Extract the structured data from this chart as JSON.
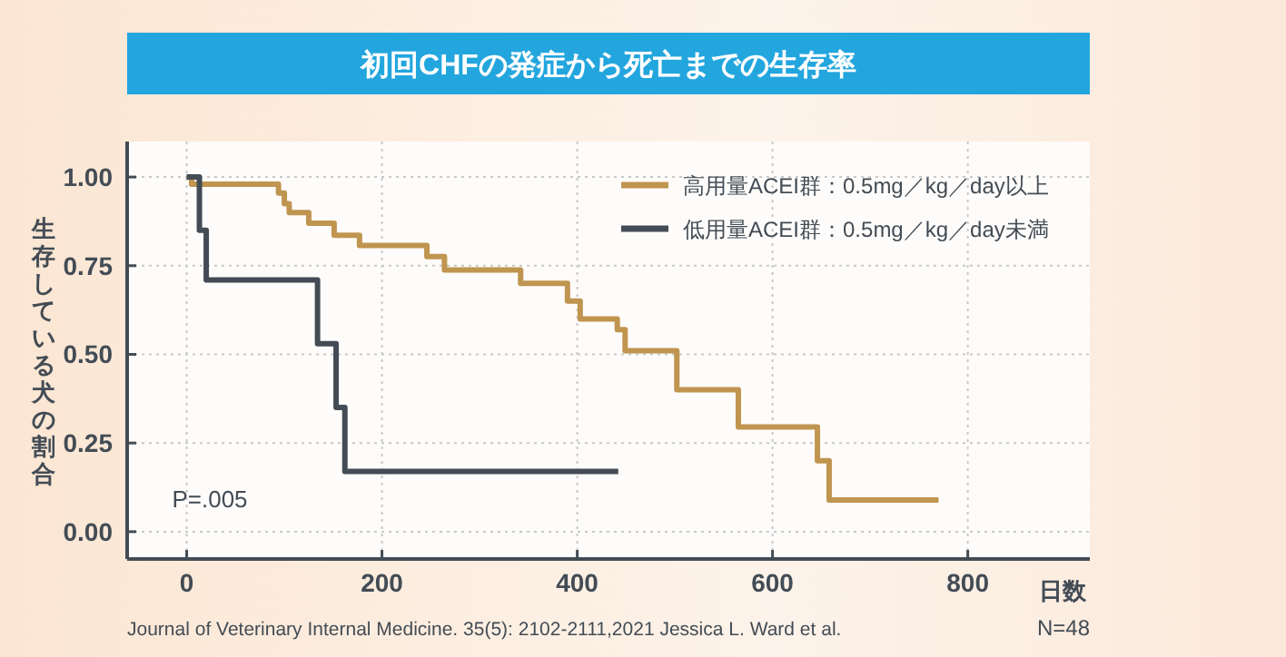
{
  "chart_data": {
    "type": "step",
    "title": "初回CHFの発症から死亡までの生存率",
    "xlabel": "日数",
    "ylabel": "生存している犬の割合",
    "xlim": [
      -61,
      925
    ],
    "ylim": [
      -0.077,
      1.1
    ],
    "xticks": [
      0,
      200,
      400,
      600,
      800
    ],
    "yticks": [
      {
        "value": 0,
        "label": "0.00"
      },
      {
        "value": 0.25,
        "label": "0.25"
      },
      {
        "value": 0.5,
        "label": "0.50"
      },
      {
        "value": 0.75,
        "label": "0.75"
      },
      {
        "value": 1,
        "label": "1.00"
      }
    ],
    "grid": true,
    "legend": "top right",
    "series": [
      {
        "name": "高用量ACEI群：0.5mg／kg／day以上",
        "color": "#c09550",
        "x": [
          0,
          5,
          94,
          100,
          105,
          125,
          151,
          177,
          246,
          264,
          342,
          390,
          403,
          441,
          449,
          502,
          565,
          646,
          658,
          770
        ],
        "values": [
          1.0,
          0.98,
          0.955,
          0.925,
          0.9,
          0.87,
          0.836,
          0.807,
          0.776,
          0.738,
          0.7,
          0.65,
          0.6,
          0.57,
          0.51,
          0.4,
          0.295,
          0.2,
          0.089,
          0.089
        ]
      },
      {
        "name": "低用量ACEI群：0.5mg／kg／day未満",
        "color": "#434c55",
        "x": [
          0,
          13,
          20,
          134,
          153,
          162,
          442
        ],
        "values": [
          1.0,
          0.85,
          0.71,
          0.53,
          0.35,
          0.17,
          0.17
        ]
      }
    ],
    "annotations": [
      "P=.005",
      "Journal of Veterinary Internal Medicine. 35(5): 2102-2111,2021 Jessica L. Ward et al.",
      "N=48"
    ]
  }
}
